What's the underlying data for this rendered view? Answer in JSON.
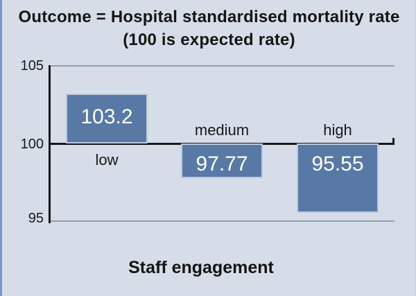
{
  "title": {
    "line1": "Outcome = Hospital standardised mortality rate",
    "line2": "(100 is expected rate)"
  },
  "chart_data": {
    "type": "bar",
    "title": "Outcome = Hospital standardised mortality rate (100 is expected rate)",
    "categories": [
      "low",
      "medium",
      "high"
    ],
    "values": [
      103.2,
      97.77,
      95.55
    ],
    "value_labels": [
      "103.2",
      "97.77",
      "95.55"
    ],
    "xlabel": "Staff engagement",
    "ylabel": "",
    "ylim": [
      95,
      105
    ],
    "baseline": 100,
    "yticks": [
      "105",
      "100",
      "95"
    ],
    "grid": true,
    "legend": false
  },
  "colors": {
    "background": "#d6dde9",
    "left_edge": "#7897cc",
    "bar_fill": "#5879a6",
    "bar_border": "#bccadd",
    "axis": "#17181a",
    "gridline": "#989ea8",
    "value_text": "#ffffff",
    "label_text": "#17181a"
  }
}
